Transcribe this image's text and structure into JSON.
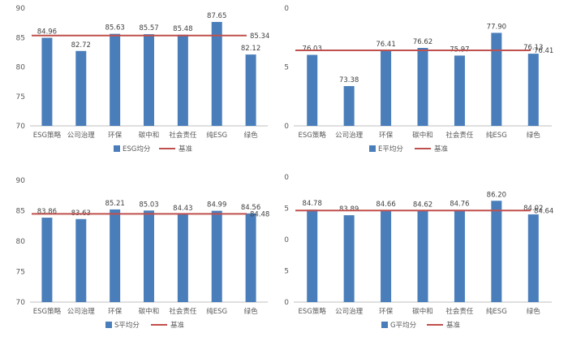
{
  "colors": {
    "bar": "#4a7ebb",
    "baseline": "#c0504d",
    "axis": "#bfbfbf",
    "text": "#595959"
  },
  "chart_data": [
    {
      "type": "bar",
      "categories": [
        "ESG策略",
        "公司治理",
        "环保",
        "碳中和",
        "社会责任",
        "纯ESG",
        "绿色"
      ],
      "series": [
        {
          "name": "ESG均分",
          "values": [
            84.96,
            82.72,
            85.63,
            85.57,
            85.48,
            87.65,
            82.12
          ]
        },
        {
          "name": "基准",
          "type": "line",
          "value": 85.34
        }
      ],
      "value_labels": [
        "84.96",
        "82.72",
        "85.63",
        "85.57",
        "85.48",
        "87.65",
        "82.12"
      ],
      "baseline_label": "85.34",
      "ylim": [
        70,
        90
      ],
      "yticks": [
        "70",
        "75",
        "80",
        "85",
        "90"
      ],
      "legend": "bottom"
    },
    {
      "type": "bar",
      "categories": [
        "ESG策略",
        "公司治理",
        "环保",
        "碳中和",
        "社会责任",
        "纯ESG",
        "绿色"
      ],
      "series": [
        {
          "name": "E平均分",
          "values": [
            76.03,
            73.38,
            76.41,
            76.62,
            75.97,
            77.9,
            76.13
          ]
        },
        {
          "name": "基准",
          "type": "line",
          "value": 76.41
        }
      ],
      "value_labels": [
        "76.03",
        "73.38",
        "76.41",
        "76.62",
        "75.97",
        "77.90",
        "76.13"
      ],
      "baseline_label": "76.41",
      "ylim": [
        70,
        80
      ],
      "yticks": [
        "70",
        "75",
        "80"
      ],
      "legend": "bottom"
    },
    {
      "type": "bar",
      "categories": [
        "ESG策略",
        "公司治理",
        "环保",
        "碳中和",
        "社会责任",
        "纯ESG",
        "绿色"
      ],
      "series": [
        {
          "name": "S平均分",
          "values": [
            83.86,
            83.63,
            85.21,
            85.03,
            84.43,
            84.99,
            84.56
          ]
        },
        {
          "name": "基准",
          "type": "line",
          "value": 84.48
        }
      ],
      "value_labels": [
        "83.86",
        "83.63",
        "85.21",
        "85.03",
        "84.43",
        "84.99",
        "84.56"
      ],
      "baseline_label": "84.48",
      "ylim": [
        70,
        90
      ],
      "yticks": [
        "70",
        "75",
        "80",
        "85",
        "90"
      ],
      "legend": "bottom"
    },
    {
      "type": "bar",
      "categories": [
        "ESG策略",
        "公司治理",
        "环保",
        "碳中和",
        "社会责任",
        "纯ESG",
        "绿色"
      ],
      "series": [
        {
          "name": "G平均分",
          "values": [
            84.78,
            83.89,
            84.66,
            84.62,
            84.76,
            86.2,
            84.02
          ]
        },
        {
          "name": "基准",
          "type": "line",
          "value": 84.64
        }
      ],
      "value_labels": [
        "84.78",
        "83.89",
        "84.66",
        "84.62",
        "84.76",
        "86.20",
        "84.02"
      ],
      "baseline_label": "84.64",
      "ylim": [
        70,
        90
      ],
      "yticks": [
        "70",
        "75",
        "80",
        "85",
        "90"
      ],
      "legend": "bottom"
    }
  ]
}
